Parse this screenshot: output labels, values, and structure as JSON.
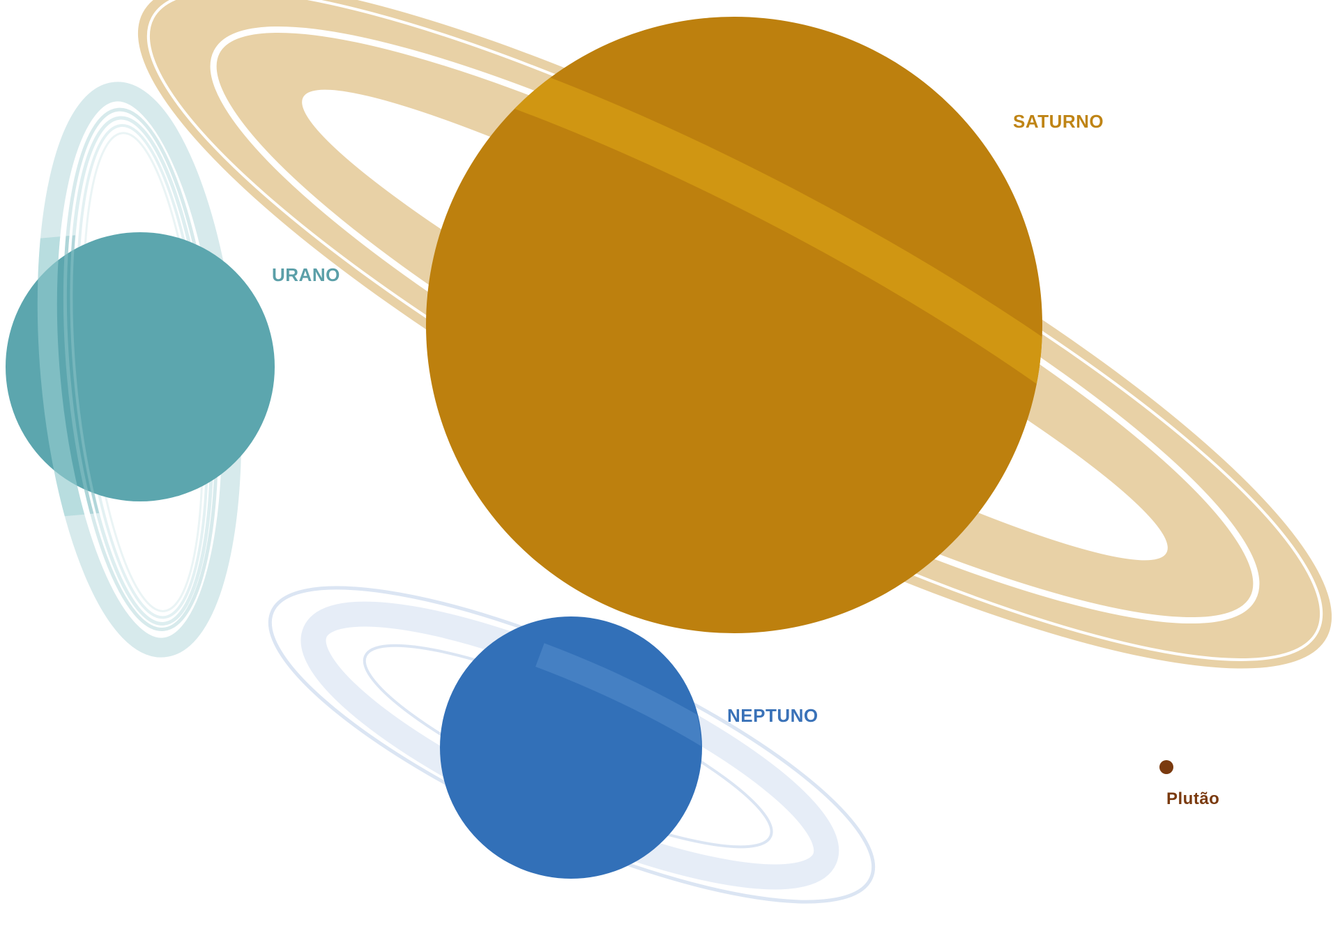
{
  "planets": {
    "saturn": {
      "label": "SATURNO",
      "color": "#bd800e",
      "ring_color": "#e8d1a6",
      "ring_overlay_color": "#d09612",
      "label_color": "#bf8415"
    },
    "uranus": {
      "label": "URANO",
      "color": "#5ca6ae",
      "ring_color": "#d7eaec",
      "label_color": "#5b9fa8"
    },
    "neptune": {
      "label": "NEPTUNO",
      "color": "#3270b8",
      "ring_color": "#e6edf7",
      "label_color": "#3a72b8"
    },
    "pluto": {
      "label": "Plutão",
      "color": "#7a3a0f",
      "label_color": "#7a3a0f"
    }
  }
}
